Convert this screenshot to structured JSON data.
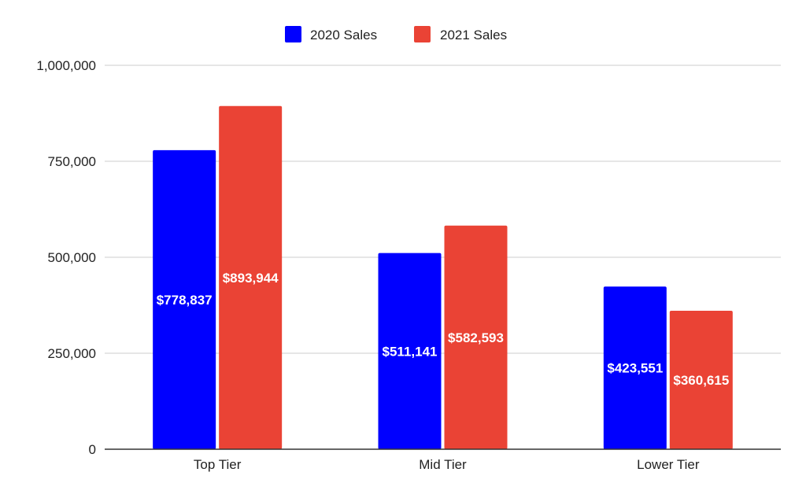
{
  "chart_data": {
    "type": "bar",
    "title": "",
    "xlabel": "",
    "ylabel": "",
    "categories": [
      "Top Tier",
      "Mid Tier",
      "Lower Tier"
    ],
    "series": [
      {
        "name": "2020 Sales",
        "color": "#0000ff",
        "values": [
          778837,
          511141,
          423551
        ],
        "labels": [
          "$778,837",
          "$511,141",
          "$423,551"
        ]
      },
      {
        "name": "2021 Sales",
        "color": "#ea4335",
        "values": [
          893944,
          582593,
          360615
        ],
        "labels": [
          "$893,944",
          "$582,593",
          "$360,615"
        ]
      }
    ],
    "ylim": [
      0,
      1000000
    ],
    "yticks": [
      0,
      250000,
      500000,
      750000,
      1000000
    ],
    "ytick_labels": [
      "0",
      "250,000",
      "500,000",
      "750,000",
      "1,000,000"
    ],
    "grid": true,
    "legend_position": "top-center",
    "data_label_position": "center"
  }
}
